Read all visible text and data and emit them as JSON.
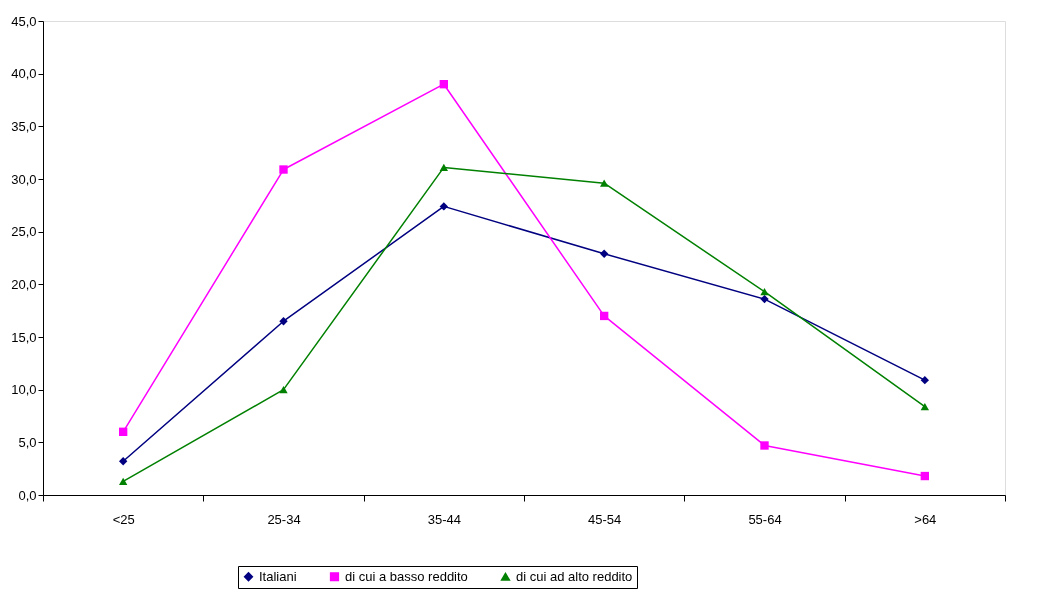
{
  "chart_data": {
    "type": "line",
    "categories": [
      "<25",
      "25-34",
      "35-44",
      "45-54",
      "55-64",
      ">64"
    ],
    "series": [
      {
        "name": "Italiani",
        "color": "#000080",
        "marker": "diamond",
        "values": [
          3.2,
          16.5,
          27.4,
          22.9,
          18.6,
          10.9
        ]
      },
      {
        "name": "di cui a basso reddito",
        "color": "#ff00ff",
        "marker": "square",
        "values": [
          6.0,
          30.9,
          39.0,
          17.0,
          4.7,
          1.8
        ]
      },
      {
        "name": "di cui ad alto reddito",
        "color": "#008000",
        "marker": "triangle",
        "values": [
          1.3,
          10.0,
          31.1,
          29.6,
          19.3,
          8.4
        ]
      }
    ],
    "ylim": [
      0,
      45
    ],
    "yticks": [
      {
        "value": 0,
        "label": "0,0"
      },
      {
        "value": 5,
        "label": "5,0"
      },
      {
        "value": 10,
        "label": "10,0"
      },
      {
        "value": 15,
        "label": "15,0"
      },
      {
        "value": 20,
        "label": "20,0"
      },
      {
        "value": 25,
        "label": "25,0"
      },
      {
        "value": 30,
        "label": "30,0"
      },
      {
        "value": 35,
        "label": "35,0"
      },
      {
        "value": 40,
        "label": "40,0"
      },
      {
        "value": 45,
        "label": "45,0"
      }
    ],
    "grid": false,
    "legend": "bottom",
    "line_style": "solid"
  }
}
